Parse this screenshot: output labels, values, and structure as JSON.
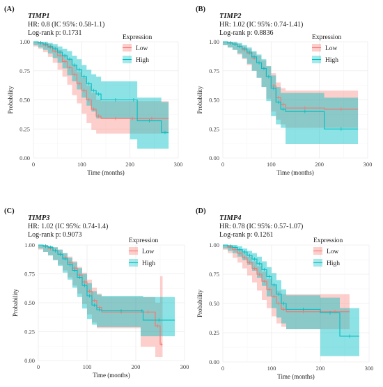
{
  "colors": {
    "low": "#F8766D",
    "high": "#00BFC4",
    "grid": "#ebebeb"
  },
  "chart_data": [
    {
      "type": "line",
      "panel_label": "(A)",
      "gene": "TIMP1",
      "hr_text": "HR: 0.8 (IC 95%: 0.58-1.1)",
      "logrank_text": "Log-rank  p: 0.1731",
      "xlabel": "Time (months)",
      "ylabel": "Probability",
      "xlim": [
        0,
        300
      ],
      "ylim": [
        0,
        1
      ],
      "x_ticks": [
        "0",
        "100",
        "200",
        "300"
      ],
      "y_ticks": [
        "0.00",
        "0.25",
        "0.50",
        "0.75",
        "1.00"
      ],
      "legend": {
        "title": "Expression",
        "position": "top-right",
        "entries": [
          "Low",
          "High"
        ]
      },
      "series": [
        {
          "name": "Low",
          "points": [
            [
              0,
              1
            ],
            [
              10,
              0.99
            ],
            [
              20,
              0.97
            ],
            [
              30,
              0.95
            ],
            [
              40,
              0.92
            ],
            [
              50,
              0.88
            ],
            [
              60,
              0.83
            ],
            [
              70,
              0.78
            ],
            [
              80,
              0.72
            ],
            [
              90,
              0.64
            ],
            [
              100,
              0.58
            ],
            [
              110,
              0.5
            ],
            [
              120,
              0.42
            ],
            [
              130,
              0.36
            ],
            [
              140,
              0.34
            ],
            [
              200,
              0.34
            ],
            [
              210,
              0.34
            ],
            [
              280,
              0.34
            ]
          ],
          "ci_upper": [
            1,
            1,
            0.99,
            0.98,
            0.96,
            0.93,
            0.89,
            0.85,
            0.8,
            0.74,
            0.69,
            0.62,
            0.56,
            0.5,
            0.49,
            0.49,
            0.49,
            0.49
          ],
          "ci_lower": [
            0.99,
            0.96,
            0.94,
            0.91,
            0.87,
            0.82,
            0.76,
            0.7,
            0.63,
            0.54,
            0.47,
            0.38,
            0.3,
            0.24,
            0.21,
            0.21,
            0.21,
            0.21
          ]
        },
        {
          "name": "High",
          "points": [
            [
              0,
              1
            ],
            [
              10,
              0.99
            ],
            [
              20,
              0.98
            ],
            [
              30,
              0.96
            ],
            [
              40,
              0.94
            ],
            [
              50,
              0.91
            ],
            [
              60,
              0.88
            ],
            [
              70,
              0.85
            ],
            [
              80,
              0.8
            ],
            [
              90,
              0.76
            ],
            [
              100,
              0.7
            ],
            [
              110,
              0.64
            ],
            [
              120,
              0.58
            ],
            [
              130,
              0.55
            ],
            [
              140,
              0.5
            ],
            [
              200,
              0.5
            ],
            [
              215,
              0.32
            ],
            [
              265,
              0.22
            ],
            [
              280,
              0.22
            ]
          ],
          "ci_upper": [
            1,
            1,
            1,
            0.99,
            0.98,
            0.96,
            0.94,
            0.92,
            0.88,
            0.85,
            0.8,
            0.76,
            0.72,
            0.7,
            0.66,
            0.66,
            0.52,
            0.48,
            0.48
          ],
          "ci_lower": [
            0.99,
            0.97,
            0.95,
            0.93,
            0.9,
            0.86,
            0.82,
            0.77,
            0.71,
            0.66,
            0.59,
            0.52,
            0.45,
            0.4,
            0.34,
            0.34,
            0.16,
            0.08,
            0.08
          ]
        }
      ]
    },
    {
      "type": "line",
      "panel_label": "(B)",
      "gene": "TIMP2",
      "hr_text": "HR: 1.02 (IC 95%: 0.74-1.41)",
      "logrank_text": "Log-rank  p: 0.8836",
      "xlabel": "Time (months)",
      "ylabel": "Probability",
      "xlim": [
        0,
        300
      ],
      "ylim": [
        0,
        1
      ],
      "x_ticks": [
        "0",
        "100",
        "200",
        "300"
      ],
      "y_ticks": [
        "0.00",
        "0.25",
        "0.50",
        "0.75",
        "1.00"
      ],
      "legend": {
        "title": "Expression",
        "position": "top-right",
        "entries": [
          "Low",
          "High"
        ]
      },
      "series": [
        {
          "name": "Low",
          "points": [
            [
              0,
              1
            ],
            [
              10,
              0.99
            ],
            [
              20,
              0.98
            ],
            [
              30,
              0.96
            ],
            [
              40,
              0.93
            ],
            [
              50,
              0.9
            ],
            [
              60,
              0.86
            ],
            [
              70,
              0.82
            ],
            [
              80,
              0.77
            ],
            [
              90,
              0.7
            ],
            [
              100,
              0.62
            ],
            [
              110,
              0.52
            ],
            [
              120,
              0.46
            ],
            [
              130,
              0.43
            ],
            [
              210,
              0.42
            ],
            [
              280,
              0.42
            ]
          ],
          "ci_upper": [
            1,
            1,
            0.99,
            0.98,
            0.96,
            0.94,
            0.91,
            0.88,
            0.84,
            0.79,
            0.73,
            0.65,
            0.6,
            0.58,
            0.58,
            0.58
          ],
          "ci_lower": [
            0.99,
            0.97,
            0.95,
            0.93,
            0.89,
            0.85,
            0.8,
            0.75,
            0.69,
            0.61,
            0.51,
            0.4,
            0.33,
            0.29,
            0.26,
            0.26
          ]
        },
        {
          "name": "High",
          "points": [
            [
              0,
              1
            ],
            [
              10,
              0.99
            ],
            [
              20,
              0.98
            ],
            [
              30,
              0.96
            ],
            [
              40,
              0.94
            ],
            [
              50,
              0.91
            ],
            [
              60,
              0.87
            ],
            [
              70,
              0.82
            ],
            [
              80,
              0.77
            ],
            [
              90,
              0.7
            ],
            [
              100,
              0.6
            ],
            [
              110,
              0.48
            ],
            [
              120,
              0.42
            ],
            [
              130,
              0.4
            ],
            [
              210,
              0.25
            ],
            [
              280,
              0.25
            ]
          ],
          "ci_upper": [
            1,
            1,
            1,
            0.99,
            0.97,
            0.95,
            0.92,
            0.89,
            0.85,
            0.79,
            0.71,
            0.61,
            0.56,
            0.56,
            0.52,
            0.52
          ],
          "ci_lower": [
            0.99,
            0.97,
            0.95,
            0.93,
            0.9,
            0.86,
            0.81,
            0.75,
            0.69,
            0.61,
            0.49,
            0.36,
            0.29,
            0.26,
            0.12,
            0.12
          ]
        }
      ]
    },
    {
      "type": "line",
      "panel_label": "(C)",
      "gene": "TIMP3",
      "hr_text": "HR: 1.02 (IC 95%: 0.74-1.4)",
      "logrank_text": "Log-rank  p: 0.9073",
      "xlabel": "Time (months)",
      "ylabel": "Probability",
      "xlim": [
        0,
        300
      ],
      "ylim": [
        0,
        1
      ],
      "x_ticks": [
        "0",
        "100",
        "200",
        "300"
      ],
      "y_ticks": [
        "0.00",
        "0.25",
        "0.50",
        "0.75",
        "1.00"
      ],
      "legend": {
        "title": "Expression",
        "position": "top-right",
        "entries": [
          "Low",
          "High"
        ]
      },
      "series": [
        {
          "name": "Low",
          "points": [
            [
              0,
              1
            ],
            [
              10,
              0.99
            ],
            [
              20,
              0.97
            ],
            [
              30,
              0.95
            ],
            [
              40,
              0.92
            ],
            [
              50,
              0.89
            ],
            [
              60,
              0.85
            ],
            [
              70,
              0.8
            ],
            [
              80,
              0.74
            ],
            [
              90,
              0.68
            ],
            [
              100,
              0.6
            ],
            [
              110,
              0.52
            ],
            [
              120,
              0.46
            ],
            [
              130,
              0.42
            ],
            [
              210,
              0.42
            ],
            [
              240,
              0.3
            ],
            [
              250,
              0.14
            ],
            [
              255,
              0.14
            ]
          ],
          "ci_upper": [
            1,
            1,
            0.99,
            0.98,
            0.96,
            0.93,
            0.9,
            0.86,
            0.81,
            0.76,
            0.7,
            0.63,
            0.58,
            0.55,
            0.55,
            0.5,
            0.73,
            0.73
          ],
          "ci_lower": [
            0.99,
            0.96,
            0.94,
            0.91,
            0.87,
            0.83,
            0.78,
            0.72,
            0.65,
            0.58,
            0.49,
            0.4,
            0.33,
            0.28,
            0.28,
            0.12,
            0.03,
            0.03
          ]
        },
        {
          "name": "High",
          "points": [
            [
              0,
              1
            ],
            [
              10,
              0.99
            ],
            [
              20,
              0.98
            ],
            [
              30,
              0.95
            ],
            [
              40,
              0.92
            ],
            [
              50,
              0.88
            ],
            [
              60,
              0.83
            ],
            [
              70,
              0.78
            ],
            [
              80,
              0.72
            ],
            [
              90,
              0.65
            ],
            [
              100,
              0.56
            ],
            [
              110,
              0.48
            ],
            [
              120,
              0.44
            ],
            [
              130,
              0.43
            ],
            [
              210,
              0.43
            ],
            [
              215,
              0.35
            ],
            [
              280,
              0.35
            ]
          ],
          "ci_upper": [
            1,
            1,
            0.99,
            0.98,
            0.96,
            0.93,
            0.89,
            0.85,
            0.8,
            0.75,
            0.67,
            0.6,
            0.57,
            0.56,
            0.56,
            0.55,
            0.55
          ],
          "ci_lower": [
            0.99,
            0.97,
            0.94,
            0.91,
            0.87,
            0.82,
            0.76,
            0.7,
            0.63,
            0.55,
            0.45,
            0.36,
            0.31,
            0.29,
            0.29,
            0.21,
            0.21
          ]
        }
      ]
    },
    {
      "type": "line",
      "panel_label": "(D)",
      "gene": "TIMP4",
      "hr_text": "HR: 0.78 (IC 95%: 0.57-1.07)",
      "logrank_text": "Log-rank  p: 0.1261",
      "xlabel": "Time (months)",
      "ylabel": "Probability",
      "xlim": [
        0,
        300
      ],
      "ylim": [
        0,
        1
      ],
      "x_ticks": [
        "0",
        "100",
        "200",
        "300"
      ],
      "y_ticks": [
        "0.00",
        "0.25",
        "0.50",
        "0.75",
        "1.00"
      ],
      "legend": {
        "title": "Expression",
        "position": "top-right",
        "entries": [
          "Low",
          "High"
        ]
      },
      "series": [
        {
          "name": "Low",
          "points": [
            [
              0,
              1
            ],
            [
              10,
              0.98
            ],
            [
              20,
              0.96
            ],
            [
              30,
              0.93
            ],
            [
              40,
              0.89
            ],
            [
              50,
              0.85
            ],
            [
              60,
              0.8
            ],
            [
              70,
              0.75
            ],
            [
              80,
              0.69
            ],
            [
              90,
              0.62
            ],
            [
              100,
              0.56
            ],
            [
              110,
              0.5
            ],
            [
              120,
              0.45
            ],
            [
              130,
              0.43
            ],
            [
              200,
              0.43
            ],
            [
              260,
              0.43
            ]
          ],
          "ci_upper": [
            1,
            1,
            0.98,
            0.96,
            0.93,
            0.9,
            0.86,
            0.82,
            0.77,
            0.71,
            0.66,
            0.61,
            0.58,
            0.58,
            0.58,
            0.58
          ],
          "ci_lower": [
            0.99,
            0.96,
            0.93,
            0.89,
            0.85,
            0.8,
            0.74,
            0.68,
            0.61,
            0.53,
            0.46,
            0.39,
            0.33,
            0.3,
            0.28,
            0.28
          ]
        },
        {
          "name": "High",
          "points": [
            [
              0,
              1
            ],
            [
              10,
              0.99
            ],
            [
              20,
              0.98
            ],
            [
              30,
              0.96
            ],
            [
              40,
              0.94
            ],
            [
              50,
              0.91
            ],
            [
              60,
              0.88
            ],
            [
              70,
              0.84
            ],
            [
              80,
              0.79
            ],
            [
              90,
              0.73
            ],
            [
              100,
              0.66
            ],
            [
              110,
              0.58
            ],
            [
              120,
              0.5
            ],
            [
              130,
              0.45
            ],
            [
              200,
              0.42
            ],
            [
              240,
              0.22
            ],
            [
              280,
              0.22
            ]
          ],
          "ci_upper": [
            1,
            1,
            1,
            0.99,
            0.97,
            0.95,
            0.93,
            0.9,
            0.86,
            0.81,
            0.76,
            0.7,
            0.62,
            0.57,
            0.55,
            0.46,
            0.46
          ],
          "ci_lower": [
            0.99,
            0.97,
            0.95,
            0.93,
            0.9,
            0.87,
            0.83,
            0.78,
            0.72,
            0.65,
            0.56,
            0.46,
            0.38,
            0.33,
            0.28,
            0.05,
            0.05
          ]
        }
      ]
    }
  ]
}
